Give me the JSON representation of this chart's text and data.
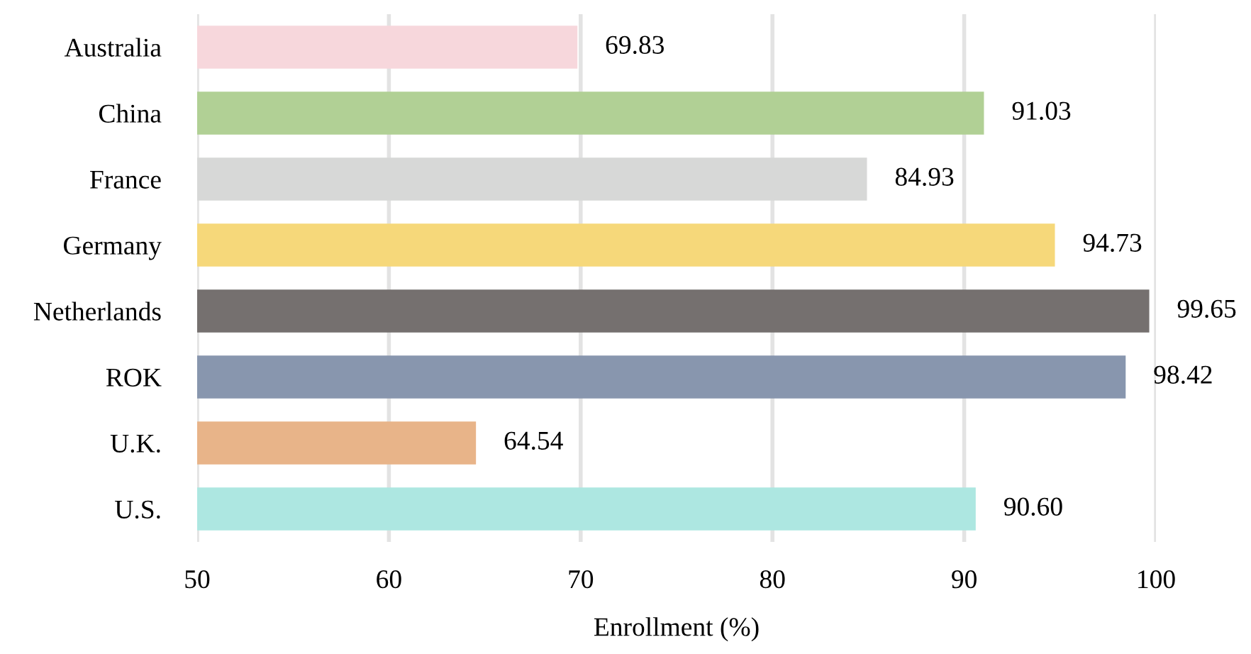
{
  "chart_data": {
    "type": "bar",
    "orientation": "horizontal",
    "xlabel": "Enrollment (%)",
    "categories": [
      "Australia",
      "China",
      "France",
      "Germany",
      "Netherlands",
      "ROK",
      "U.K.",
      "U.S."
    ],
    "values": [
      69.83,
      91.03,
      84.93,
      94.73,
      99.65,
      98.42,
      64.54,
      90.6
    ],
    "value_labels": [
      "69.83",
      "91.03",
      "84.93",
      "94.73",
      "99.65",
      "98.42",
      "64.54",
      "90.60"
    ],
    "colors": [
      "#f7d7dc",
      "#b1d095",
      "#d7d8d7",
      "#f6d87a",
      "#75706f",
      "#8896ae",
      "#e8b489",
      "#ade7e1"
    ],
    "xlim": [
      50,
      100
    ],
    "xticks": [
      50,
      60,
      70,
      80,
      90,
      100
    ],
    "grid": "x"
  }
}
